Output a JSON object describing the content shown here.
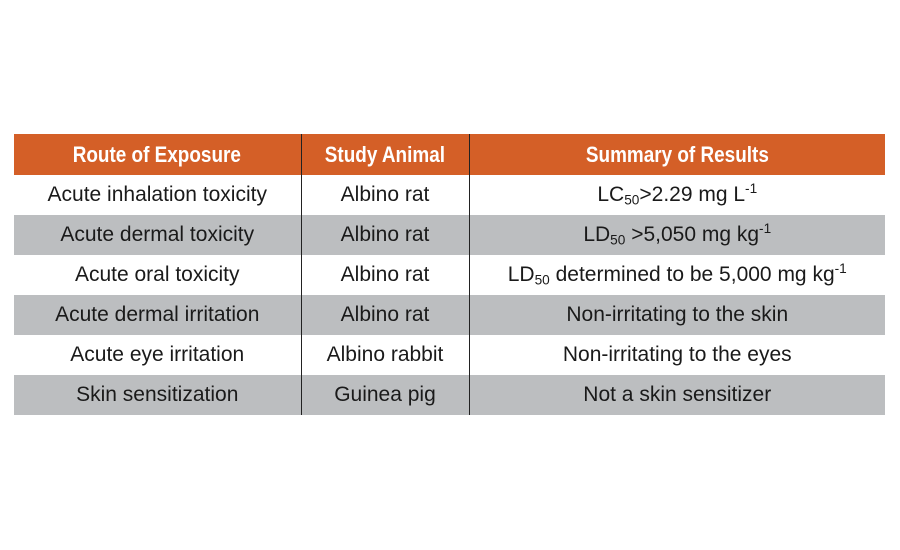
{
  "table": {
    "headers": [
      "Route of Exposure",
      "Study Animal",
      "Summary of Results"
    ],
    "rows": [
      {
        "route": "Acute inhalation toxicity",
        "animal": "Albino rat",
        "result": {
          "pre": "LC",
          "sub": "50",
          "mid": ">2.29 mg L",
          "sup": "-1",
          "post": ""
        }
      },
      {
        "route": "Acute dermal toxicity",
        "animal": "Albino rat",
        "result": {
          "pre": "LD",
          "sub": "50",
          "mid": " >5,050 mg kg",
          "sup": "-1",
          "post": ""
        }
      },
      {
        "route": "Acute oral toxicity",
        "animal": "Albino rat",
        "result": {
          "pre": "LD",
          "sub": "50",
          "mid": " determined to be 5,000 mg kg",
          "sup": "-1",
          "post": ""
        }
      },
      {
        "route": "Acute dermal irritation",
        "animal": "Albino rat",
        "result": {
          "pre": "Non-irritating to the skin",
          "sub": "",
          "mid": "",
          "sup": "",
          "post": ""
        }
      },
      {
        "route": "Acute eye irritation",
        "animal": "Albino rabbit",
        "result": {
          "pre": "Non-irritating to the eyes",
          "sub": "",
          "mid": "",
          "sup": "",
          "post": ""
        }
      },
      {
        "route": "Skin sensitization",
        "animal": "Guinea pig",
        "result": {
          "pre": "Not a skin sensitizer",
          "sub": "",
          "mid": "",
          "sup": "",
          "post": ""
        }
      }
    ]
  },
  "colors": {
    "header_bg": "#d45f27",
    "header_text": "#ffffff",
    "stripe": "#bcbec0",
    "divider": "#222222"
  }
}
